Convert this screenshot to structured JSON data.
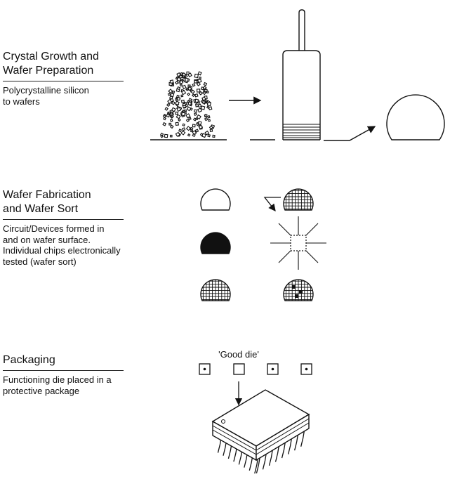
{
  "stages": [
    {
      "title_line1": "Crystal Growth and",
      "title_line2": "Wafer Preparation",
      "desc_lines": [
        "Polycrystalline silicon",
        "to wafers"
      ]
    },
    {
      "title_line1": "Wafer Fabrication",
      "title_line2": "and Wafer Sort",
      "desc_lines": [
        "Circuit/Devices formed in",
        "and on wafer surface.",
        "Individual chips electronically",
        "tested (wafer sort)"
      ]
    },
    {
      "title_line1": "Packaging",
      "title_line2": "",
      "desc_lines": [
        "Functioning die placed in a",
        "protective package"
      ]
    }
  ],
  "good_die_label": "'Good die'"
}
